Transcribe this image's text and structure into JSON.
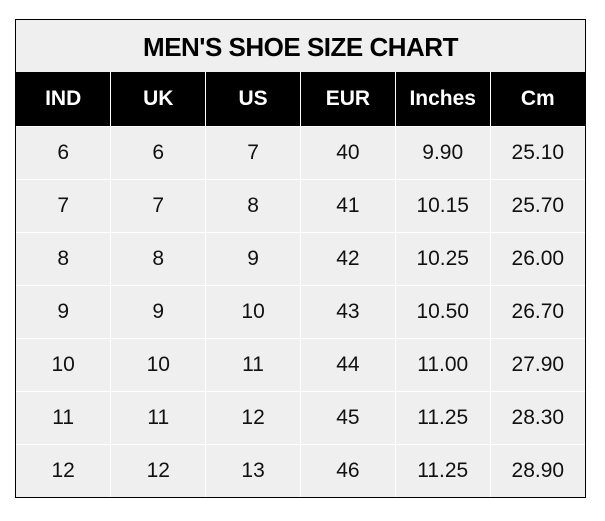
{
  "chart_data": {
    "type": "table",
    "title": "MEN'S SHOE SIZE CHART",
    "columns": [
      "IND",
      "UK",
      "US",
      "EUR",
      "Inches",
      "Cm"
    ],
    "rows": [
      [
        "6",
        "6",
        "7",
        "40",
        "9.90",
        "25.10"
      ],
      [
        "7",
        "7",
        "8",
        "41",
        "10.15",
        "25.70"
      ],
      [
        "8",
        "8",
        "9",
        "42",
        "10.25",
        "26.00"
      ],
      [
        "9",
        "9",
        "10",
        "43",
        "10.50",
        "26.70"
      ],
      [
        "10",
        "10",
        "11",
        "44",
        "11.00",
        "27.90"
      ],
      [
        "11",
        "11",
        "12",
        "45",
        "11.25",
        "28.30"
      ],
      [
        "12",
        "12",
        "13",
        "46",
        "11.25",
        "28.90"
      ]
    ],
    "colors": {
      "header_bg": "#000000",
      "header_text": "#ffffff",
      "cell_bg": "#efefef"
    }
  }
}
